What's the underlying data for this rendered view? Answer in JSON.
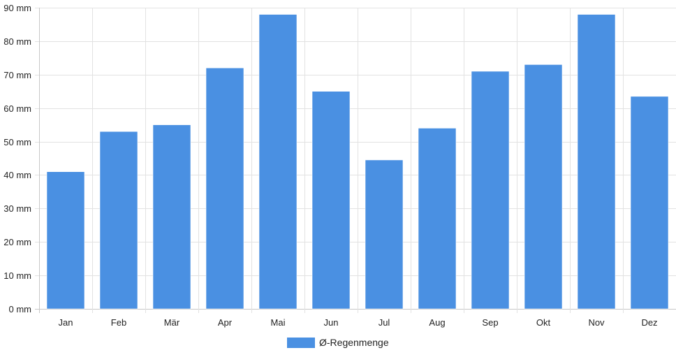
{
  "chart_data": {
    "type": "bar",
    "categories": [
      "Jan",
      "Feb",
      "Mär",
      "Apr",
      "Mai",
      "Jun",
      "Jul",
      "Aug",
      "Sep",
      "Okt",
      "Nov",
      "Dez"
    ],
    "series": [
      {
        "name": "Ø-Regenmenge",
        "color": "#4a90e2",
        "values": [
          41,
          53,
          55,
          72,
          88,
          65,
          44.5,
          54,
          71,
          73,
          88,
          63.5
        ]
      }
    ],
    "y_unit": "mm",
    "ylim": [
      0,
      90
    ],
    "yticks": [
      0,
      10,
      20,
      30,
      40,
      50,
      60,
      70,
      80,
      90
    ],
    "ytick_labels": [
      "0 mm",
      "10 mm",
      "20 mm",
      "30 mm",
      "40 mm",
      "50 mm",
      "60 mm",
      "70 mm",
      "80 mm",
      "90 mm"
    ],
    "title": "",
    "xlabel": "",
    "ylabel": "",
    "grid": true,
    "legend_position": "bottom-center"
  }
}
